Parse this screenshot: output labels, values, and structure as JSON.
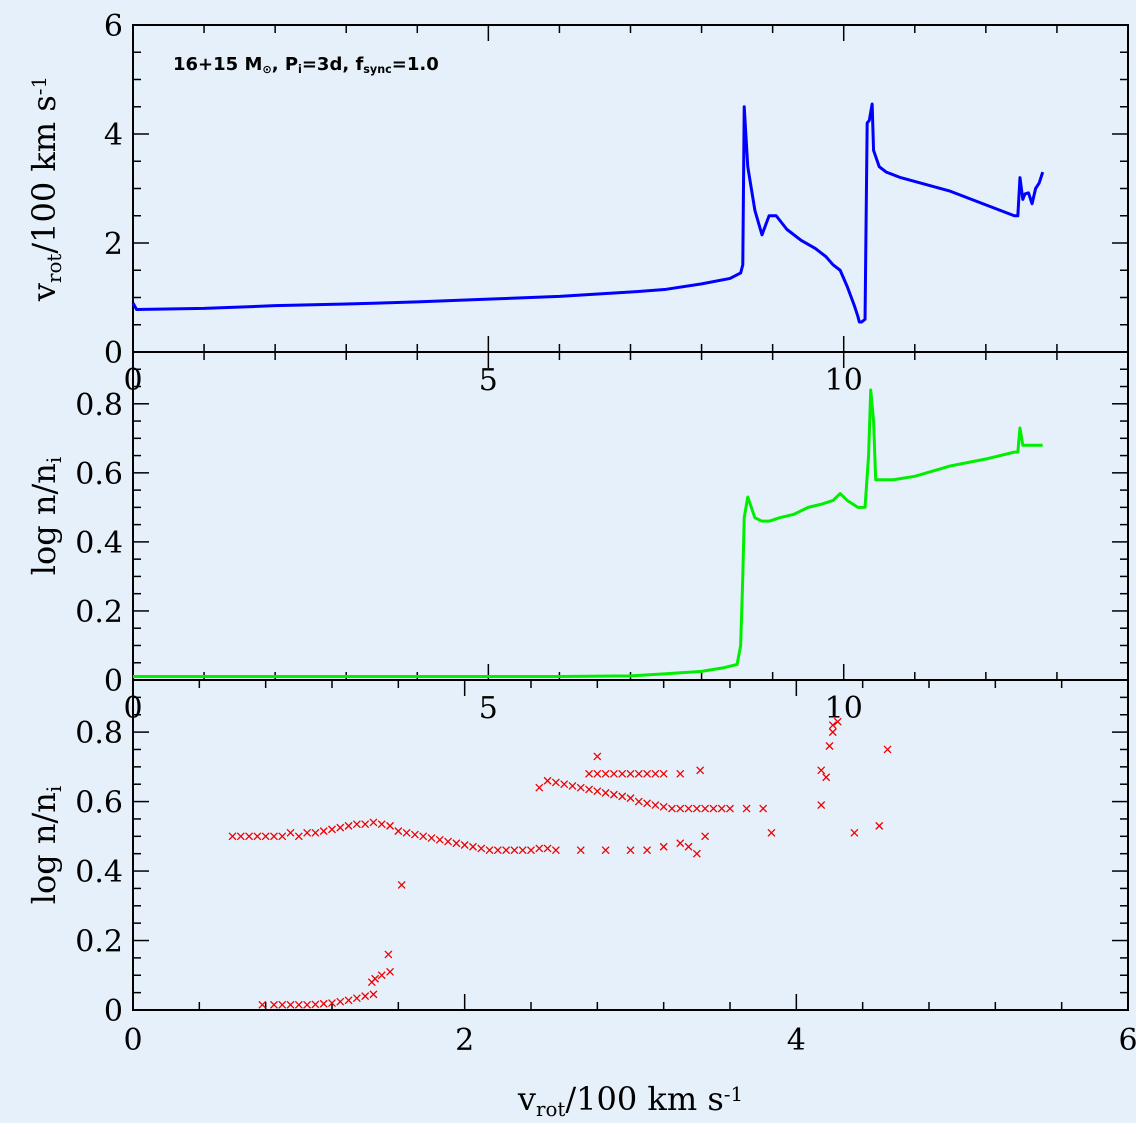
{
  "chart_data": [
    {
      "type": "line",
      "panel": "top",
      "annotation": {
        "parts": [
          {
            "text": "16+15 M"
          },
          {
            "text": "⊙",
            "sub": true
          },
          {
            "text": ", P"
          },
          {
            "text": "i",
            "sub": true
          },
          {
            "text": "=3d, f"
          },
          {
            "text": "sync",
            "sub": true
          },
          {
            "text": "=1.0"
          }
        ]
      },
      "ylabel": {
        "parts": [
          {
            "text": "v"
          },
          {
            "text": "rot",
            "sub": true
          },
          {
            "text": "/100 km s"
          },
          {
            "text": "-1",
            "sup": true
          }
        ]
      },
      "xlim": [
        0,
        14
      ],
      "ylim": [
        0,
        6
      ],
      "xticks": [
        "0",
        "5",
        "10"
      ],
      "xtick_values": [
        0,
        5,
        10
      ],
      "yticks": [
        "0",
        "2",
        "4",
        "6"
      ],
      "ytick_values": [
        0,
        2,
        4,
        6
      ],
      "color": "#0000ff",
      "series": [
        {
          "x": [
            0,
            0.05,
            1,
            2,
            3,
            4,
            5,
            6,
            7,
            7.5,
            8,
            8.4,
            8.55,
            8.58,
            8.6,
            8.65,
            8.75,
            8.85,
            8.95,
            9.05,
            9.2,
            9.4,
            9.6,
            9.75,
            9.85,
            9.95,
            10.05,
            10.15,
            10.2,
            10.22,
            10.25,
            10.3,
            10.33,
            10.36,
            10.4,
            10.42,
            10.5,
            10.6,
            10.8,
            11.5,
            12.0,
            12.4,
            12.45,
            12.48,
            12.52,
            12.55,
            12.6,
            12.65,
            12.7,
            12.75,
            12.8
          ],
          "y": [
            0.9,
            0.78,
            0.8,
            0.85,
            0.88,
            0.92,
            0.97,
            1.02,
            1.1,
            1.15,
            1.25,
            1.35,
            1.45,
            1.6,
            4.5,
            3.4,
            2.6,
            2.15,
            2.5,
            2.5,
            2.25,
            2.05,
            1.9,
            1.75,
            1.6,
            1.5,
            1.2,
            0.85,
            0.65,
            0.55,
            0.55,
            0.6,
            4.2,
            4.25,
            4.55,
            3.7,
            3.4,
            3.3,
            3.2,
            2.95,
            2.7,
            2.5,
            2.5,
            3.2,
            2.8,
            2.9,
            2.92,
            2.72,
            3.0,
            3.1,
            3.3
          ]
        }
      ]
    },
    {
      "type": "line",
      "panel": "middle",
      "ylabel": {
        "parts": [
          {
            "text": "log n/n"
          },
          {
            "text": "i",
            "sub": true
          }
        ]
      },
      "xlim": [
        0,
        14
      ],
      "ylim": [
        0,
        0.95
      ],
      "xticks": [
        "0",
        "5",
        "10"
      ],
      "xtick_values": [
        0,
        5,
        10
      ],
      "yticks": [
        "0",
        "0.2",
        "0.4",
        "0.6",
        "0.8"
      ],
      "ytick_values": [
        0,
        0.2,
        0.4,
        0.6,
        0.8
      ],
      "color": "#00ee00",
      "series": [
        {
          "x": [
            0,
            2,
            4,
            6,
            7,
            7.5,
            8,
            8.3,
            8.5,
            8.55,
            8.58,
            8.6,
            8.65,
            8.75,
            8.85,
            8.95,
            9.1,
            9.3,
            9.5,
            9.7,
            9.85,
            9.95,
            10.05,
            10.2,
            10.3,
            10.35,
            10.38,
            10.42,
            10.45,
            10.5,
            10.7,
            11,
            11.5,
            12,
            12.4,
            12.45,
            12.48,
            12.52,
            12.6,
            12.8
          ],
          "y": [
            0.01,
            0.01,
            0.01,
            0.01,
            0.012,
            0.018,
            0.025,
            0.035,
            0.045,
            0.1,
            0.3,
            0.47,
            0.53,
            0.47,
            0.46,
            0.46,
            0.47,
            0.48,
            0.5,
            0.51,
            0.52,
            0.54,
            0.52,
            0.5,
            0.5,
            0.65,
            0.84,
            0.75,
            0.58,
            0.58,
            0.58,
            0.59,
            0.62,
            0.64,
            0.66,
            0.66,
            0.73,
            0.68,
            0.68,
            0.68
          ]
        }
      ]
    },
    {
      "type": "scatter",
      "panel": "bottom",
      "xlabel": {
        "parts": [
          {
            "text": "v"
          },
          {
            "text": "rot",
            "sub": true
          },
          {
            "text": "/100 km s"
          },
          {
            "text": "-1",
            "sup": true
          }
        ]
      },
      "ylabel": {
        "parts": [
          {
            "text": "log n/n"
          },
          {
            "text": "i",
            "sub": true
          }
        ]
      },
      "xlim": [
        0,
        6
      ],
      "ylim": [
        0,
        0.95
      ],
      "xticks": [
        "0",
        "2",
        "4",
        "6"
      ],
      "xtick_values": [
        0,
        2,
        4,
        6
      ],
      "yticks": [
        "0",
        "0.2",
        "0.4",
        "0.6",
        "0.8"
      ],
      "ytick_values": [
        0,
        0.2,
        0.4,
        0.6,
        0.8
      ],
      "color": "#ee0000",
      "marker": "x",
      "series": [
        {
          "x": [
            0.78,
            0.85,
            0.9,
            0.95,
            1.0,
            1.05,
            1.1,
            1.15,
            1.2,
            1.25,
            1.3,
            1.35,
            1.4,
            1.45,
            1.44,
            1.46,
            1.5,
            1.54,
            1.55,
            1.62,
            0.6,
            0.65,
            0.7,
            0.75,
            0.8,
            0.85,
            0.9,
            0.95,
            1.0,
            1.05,
            1.1,
            1.15,
            1.2,
            1.25,
            1.3,
            1.35,
            1.4,
            1.45,
            1.5,
            1.55,
            1.6,
            1.65,
            1.7,
            1.75,
            1.8,
            1.85,
            1.9,
            1.95,
            2.0,
            2.05,
            2.1,
            2.15,
            2.2,
            2.25,
            2.3,
            2.35,
            2.4,
            2.45,
            2.5,
            2.55,
            2.5,
            2.55,
            2.6,
            2.65,
            2.7,
            2.75,
            2.8,
            2.85,
            2.9,
            2.95,
            3.0,
            3.05,
            3.1,
            3.15,
            3.2,
            3.25,
            3.3,
            3.35,
            3.4,
            3.45,
            3.5,
            3.55,
            3.6,
            3.7,
            3.8,
            2.75,
            2.8,
            2.85,
            2.9,
            2.95,
            3.0,
            3.05,
            3.1,
            3.15,
            3.2,
            3.3,
            2.45,
            2.7,
            2.8,
            2.85,
            3.0,
            3.1,
            3.2,
            3.3,
            3.35,
            3.45,
            3.4,
            3.42,
            3.85,
            4.15,
            4.18,
            4.15,
            4.2,
            4.22,
            4.25,
            4.22,
            4.35,
            4.5,
            4.55
          ],
          "y": [
            0.015,
            0.015,
            0.015,
            0.015,
            0.015,
            0.015,
            0.016,
            0.018,
            0.02,
            0.024,
            0.028,
            0.034,
            0.04,
            0.045,
            0.08,
            0.09,
            0.1,
            0.16,
            0.11,
            0.36,
            0.5,
            0.5,
            0.5,
            0.5,
            0.5,
            0.5,
            0.5,
            0.51,
            0.5,
            0.51,
            0.51,
            0.515,
            0.52,
            0.525,
            0.53,
            0.535,
            0.535,
            0.54,
            0.535,
            0.53,
            0.515,
            0.51,
            0.505,
            0.5,
            0.495,
            0.49,
            0.485,
            0.48,
            0.475,
            0.47,
            0.465,
            0.46,
            0.46,
            0.46,
            0.46,
            0.46,
            0.46,
            0.465,
            0.465,
            0.46,
            0.66,
            0.655,
            0.65,
            0.645,
            0.64,
            0.635,
            0.63,
            0.625,
            0.62,
            0.615,
            0.61,
            0.6,
            0.595,
            0.59,
            0.585,
            0.58,
            0.58,
            0.58,
            0.58,
            0.58,
            0.58,
            0.58,
            0.58,
            0.58,
            0.58,
            0.68,
            0.68,
            0.68,
            0.68,
            0.68,
            0.68,
            0.68,
            0.68,
            0.68,
            0.68,
            0.68,
            0.64,
            0.46,
            0.73,
            0.46,
            0.46,
            0.46,
            0.47,
            0.48,
            0.47,
            0.5,
            0.45,
            0.69,
            0.51,
            0.59,
            0.67,
            0.69,
            0.76,
            0.82,
            0.83,
            0.8,
            0.51,
            0.53,
            0.75
          ]
        }
      ]
    }
  ]
}
